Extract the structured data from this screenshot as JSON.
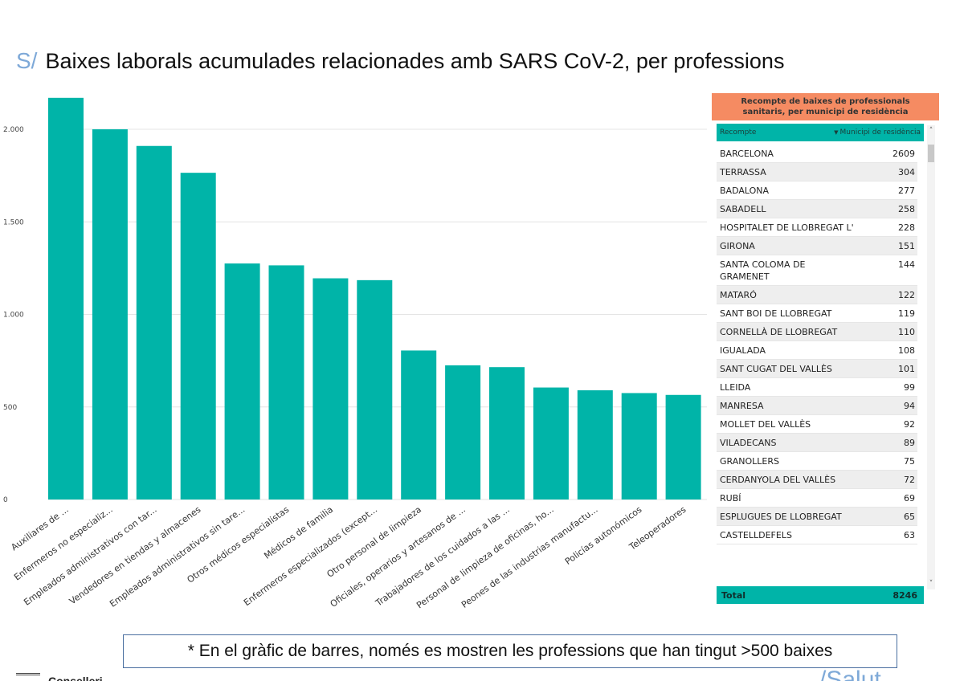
{
  "header": {
    "prefix": "S/",
    "title": "Baixes laborals acumulades relacionades amb SARS CoV-2, per professions"
  },
  "chart_data": {
    "type": "bar",
    "title": "",
    "xlabel": "",
    "ylabel": "",
    "ylim": [
      0,
      2200
    ],
    "yticks": [
      0,
      500,
      1000,
      1500,
      2000
    ],
    "ytick_labels": [
      "0",
      "500",
      "1.000",
      "1.500",
      "2.000"
    ],
    "grid": true,
    "bar_color": "#00b4a8",
    "categories": [
      "Auxiliares de ...",
      "Enfermeros no especializ...",
      "Empleados administrativos con tar...",
      "Vendedores en tiendas y almacenes",
      "Empleados administrativos sin tare...",
      "Otros médicos especialistas",
      "Médicos de familia",
      "Enfermeros especializados (except...",
      "Otro personal de limpieza",
      "Oficiales, operarios y artesanos de ...",
      "Trabajadores de los cuidados a las ...",
      "Personal de limpieza de oficinas, ho...",
      "Peones de las industrias manufactu...",
      "Policías autonómicos",
      "Teleoperadores"
    ],
    "values": [
      2170,
      2000,
      1910,
      1765,
      1275,
      1265,
      1195,
      1185,
      805,
      725,
      715,
      605,
      590,
      575,
      565
    ]
  },
  "table": {
    "title": "Recompte de baixes de professionals sanitaris, per municipi de residència",
    "col_recompte": "Recompte",
    "col_municipi": "Municipi de residència",
    "header_color": "#f58b62",
    "accent_color": "#00b4a8",
    "rows": [
      {
        "name": "BARCELONA",
        "value": "2609"
      },
      {
        "name": "TERRASSA",
        "value": "304"
      },
      {
        "name": "BADALONA",
        "value": "277"
      },
      {
        "name": "SABADELL",
        "value": "258"
      },
      {
        "name": "HOSPITALET DE LLOBREGAT L'",
        "value": "228"
      },
      {
        "name": "GIRONA",
        "value": "151"
      },
      {
        "name": "SANTA COLOMA DE GRAMENET",
        "value": "144"
      },
      {
        "name": "MATARÓ",
        "value": "122"
      },
      {
        "name": "SANT BOI DE LLOBREGAT",
        "value": "119"
      },
      {
        "name": "CORNELLÀ DE LLOBREGAT",
        "value": "110"
      },
      {
        "name": "IGUALADA",
        "value": "108"
      },
      {
        "name": "SANT CUGAT DEL VALLÈS",
        "value": "101"
      },
      {
        "name": "LLEIDA",
        "value": "99"
      },
      {
        "name": "MANRESA",
        "value": "94"
      },
      {
        "name": "MOLLET DEL VALLÈS",
        "value": "92"
      },
      {
        "name": "VILADECANS",
        "value": "89"
      },
      {
        "name": "GRANOLLERS",
        "value": "75"
      },
      {
        "name": "CERDANYOLA DEL VALLÈS",
        "value": "72"
      },
      {
        "name": "RUBÍ",
        "value": "69"
      },
      {
        "name": "ESPLUGUES DE LLOBREGAT",
        "value": "65"
      },
      {
        "name": "CASTELLDEFELS",
        "value": "63"
      }
    ],
    "total_label": "Total",
    "total_value": "8246",
    "scroll_up_icon": "chevron-up-icon",
    "scroll_down_icon": "chevron-down-icon"
  },
  "footnote": "* En el gràfic de barres, només es mostren les professions que han tingut >500 baixes",
  "footer": {
    "brand_partial": "Conselleri",
    "handle_partial": "/Salut"
  }
}
